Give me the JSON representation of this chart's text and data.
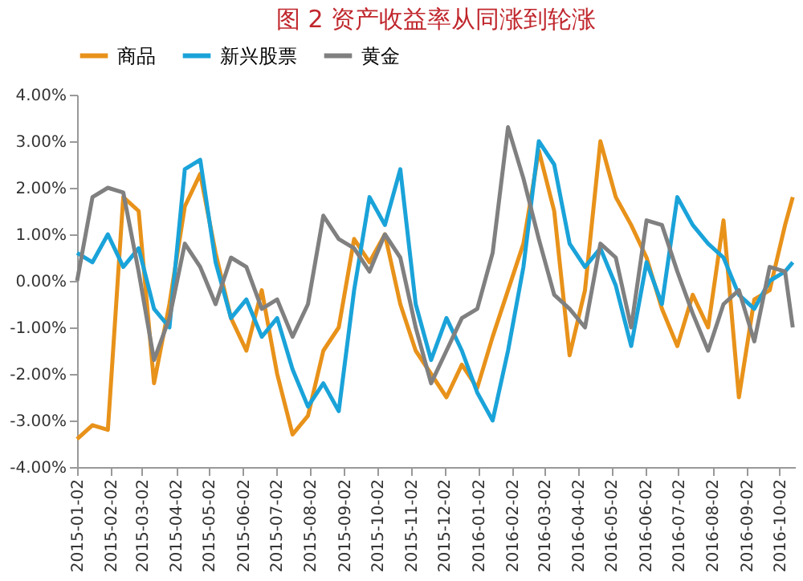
{
  "chart_data": {
    "type": "line",
    "title": "图 2 资产收益率从同涨到轮涨",
    "x": [
      "2015-01-02",
      "2015-01-16",
      "2015-01-30",
      "2015-02-13",
      "2015-02-27",
      "2015-03-13",
      "2015-03-27",
      "2015-04-10",
      "2015-04-24",
      "2015-05-08",
      "2015-05-22",
      "2015-06-05",
      "2015-06-19",
      "2015-07-03",
      "2015-07-17",
      "2015-07-31",
      "2015-08-14",
      "2015-08-28",
      "2015-09-11",
      "2015-09-25",
      "2015-10-09",
      "2015-10-23",
      "2015-11-06",
      "2015-11-20",
      "2015-12-04",
      "2015-12-18",
      "2016-01-01",
      "2016-01-15",
      "2016-01-29",
      "2016-02-12",
      "2016-02-26",
      "2016-03-11",
      "2016-03-25",
      "2016-04-08",
      "2016-04-22",
      "2016-05-06",
      "2016-05-20",
      "2016-06-03",
      "2016-06-17",
      "2016-07-01",
      "2016-07-15",
      "2016-07-29",
      "2016-08-12",
      "2016-08-26",
      "2016-09-09",
      "2016-09-23",
      "2016-10-07",
      "2016-10-14"
    ],
    "series": [
      {
        "name": "商品",
        "color": "#e8921a",
        "values": [
          -3.4,
          -3.1,
          -3.2,
          1.8,
          1.5,
          -2.2,
          -0.5,
          1.6,
          2.3,
          0.6,
          -0.8,
          -1.5,
          -0.2,
          -2.0,
          -3.3,
          -2.9,
          -1.5,
          -1.0,
          0.9,
          0.4,
          1.0,
          -0.5,
          -1.5,
          -2.0,
          -2.5,
          -1.8,
          -2.3,
          -1.2,
          -0.2,
          0.8,
          2.8,
          1.5,
          -1.6,
          -0.2,
          3.0,
          1.8,
          1.2,
          0.5,
          -0.6,
          -1.4,
          -0.3,
          -1.0,
          1.3,
          -2.5,
          -0.4,
          -0.2,
          1.2,
          1.8
        ]
      },
      {
        "name": "新兴股票",
        "color": "#1aa3d9",
        "values": [
          0.6,
          0.4,
          1.0,
          0.3,
          0.7,
          -0.6,
          -1.0,
          2.4,
          2.6,
          0.4,
          -0.8,
          -0.4,
          -1.2,
          -0.8,
          -1.9,
          -2.7,
          -2.2,
          -2.8,
          -0.2,
          1.8,
          1.2,
          2.4,
          -0.5,
          -1.7,
          -0.8,
          -1.5,
          -2.4,
          -3.0,
          -1.5,
          0.3,
          3.0,
          2.5,
          0.8,
          0.3,
          0.7,
          -0.1,
          -1.4,
          0.4,
          -0.5,
          1.8,
          1.2,
          0.8,
          0.5,
          -0.3,
          -0.6,
          0.0,
          0.2,
          0.4
        ]
      },
      {
        "name": "黄金",
        "color": "#808080",
        "values": [
          0.0,
          1.8,
          2.0,
          1.9,
          0.2,
          -1.7,
          -0.8,
          0.8,
          0.3,
          -0.5,
          0.5,
          0.3,
          -0.6,
          -0.4,
          -1.2,
          -0.5,
          1.4,
          0.9,
          0.7,
          0.2,
          1.0,
          0.5,
          -1.0,
          -2.2,
          -1.5,
          -0.8,
          -0.6,
          0.6,
          3.3,
          2.2,
          0.9,
          -0.3,
          -0.6,
          -1.0,
          0.8,
          0.5,
          -1.0,
          1.3,
          1.2,
          0.2,
          -0.7,
          -1.5,
          -0.5,
          -0.2,
          -1.3,
          0.3,
          0.2,
          -1.0
        ]
      }
    ],
    "xlim": [
      "2015-01-02",
      "2016-10-16"
    ],
    "xticks": [
      "2015-01-02",
      "2015-02-02",
      "2015-03-02",
      "2015-04-02",
      "2015-05-02",
      "2015-06-02",
      "2015-07-02",
      "2015-08-02",
      "2015-09-02",
      "2015-10-02",
      "2015-11-02",
      "2015-12-02",
      "2016-01-02",
      "2016-02-02",
      "2016-03-02",
      "2016-04-02",
      "2016-05-02",
      "2016-06-02",
      "2016-07-02",
      "2016-08-02",
      "2016-09-02",
      "2016-10-02"
    ],
    "ylim": [
      -4,
      4
    ],
    "yticks": [
      {
        "value": -4,
        "label": "-4.00%"
      },
      {
        "value": -3,
        "label": "-3.00%"
      },
      {
        "value": -2,
        "label": "-2.00%"
      },
      {
        "value": -1,
        "label": "-1.00%"
      },
      {
        "value": 0,
        "label": "0.00%"
      },
      {
        "value": 1,
        "label": "1.00%"
      },
      {
        "value": 2,
        "label": "2.00%"
      },
      {
        "value": 3,
        "label": "3.00%"
      },
      {
        "value": 4,
        "label": "4.00%"
      }
    ],
    "grid": false,
    "legend": "top",
    "marker": "none",
    "line_style": "solid"
  }
}
